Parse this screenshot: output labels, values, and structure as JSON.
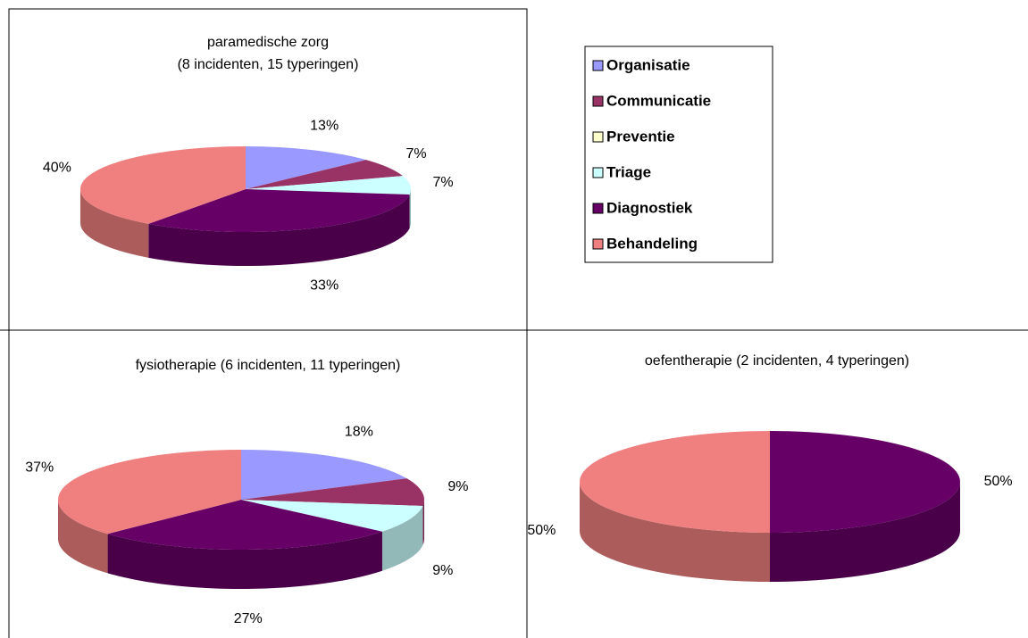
{
  "chart_data": [
    {
      "type": "pie",
      "title": "paramedische zorg",
      "subtitle": "(8 incidenten, 15 typeringen)",
      "categories": [
        "Organisatie",
        "Communicatie",
        "Preventie",
        "Triage",
        "Diagnostiek",
        "Behandeling"
      ],
      "colors": [
        "#9999ff",
        "#993366",
        "#ffffcc",
        "#ccffff",
        "#660066",
        "#f08080"
      ],
      "values": [
        13,
        7,
        0,
        7,
        33,
        40
      ],
      "value_labels": [
        "13%",
        "7%",
        null,
        "7%",
        "33%",
        "40%"
      ]
    },
    {
      "type": "pie",
      "title": "fysiotherapie (6 incidenten, 11 typeringen)",
      "categories": [
        "Organisatie",
        "Communicatie",
        "Preventie",
        "Triage",
        "Diagnostiek",
        "Behandeling"
      ],
      "colors": [
        "#9999ff",
        "#993366",
        "#ffffcc",
        "#ccffff",
        "#660066",
        "#f08080"
      ],
      "values": [
        18,
        9,
        0,
        9,
        27,
        37
      ],
      "value_labels": [
        "18%",
        "9%",
        null,
        "9%",
        "27%",
        "37%"
      ]
    },
    {
      "type": "pie",
      "title": "oefentherapie (2 incidenten, 4 typeringen)",
      "categories": [
        "Diagnostiek",
        "Behandeling"
      ],
      "colors": [
        "#660066",
        "#f08080"
      ],
      "values": [
        50,
        50
      ],
      "value_labels": [
        "50%",
        "50%"
      ]
    }
  ]
}
